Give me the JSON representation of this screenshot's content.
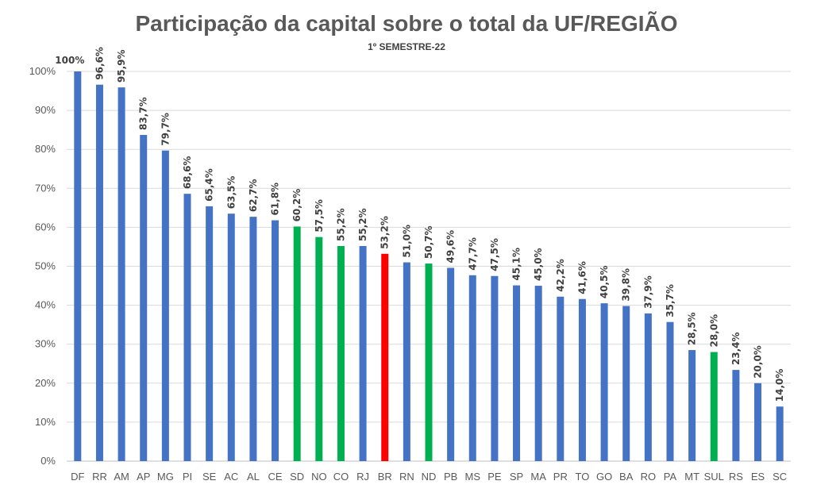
{
  "chart_data": {
    "type": "bar",
    "title": "Participação da capital sobre o total da UF/REGIÃO",
    "subtitle": "1º SEMESTRE-22",
    "xlabel": "",
    "ylabel": "",
    "ylim": [
      0,
      100
    ],
    "yticks": [
      "0%",
      "10%",
      "20%",
      "30%",
      "40%",
      "50%",
      "60%",
      "70%",
      "80%",
      "90%",
      "100%"
    ],
    "grid": true,
    "legend": "none",
    "categories": [
      "DF",
      "RR",
      "AM",
      "AP",
      "MG",
      "PI",
      "SE",
      "AC",
      "AL",
      "CE",
      "SD",
      "NO",
      "CO",
      "RJ",
      "BR",
      "RN",
      "ND",
      "PB",
      "MS",
      "PE",
      "SP",
      "MA",
      "PR",
      "TO",
      "GO",
      "BA",
      "RO",
      "PA",
      "MT",
      "SUL",
      "RS",
      "ES",
      "SC"
    ],
    "values": [
      100,
      96.6,
      95.9,
      83.7,
      79.7,
      68.6,
      65.4,
      63.5,
      62.7,
      61.8,
      60.2,
      57.5,
      55.2,
      55.2,
      53.2,
      51.0,
      50.7,
      49.6,
      47.7,
      47.5,
      45.1,
      45.0,
      42.2,
      41.6,
      40.5,
      39.8,
      37.9,
      35.7,
      28.5,
      28.0,
      23.4,
      20.0,
      14.0
    ],
    "labels": [
      "100%",
      "96,6%",
      "95,9%",
      "83,7%",
      "79,7%",
      "68,6%",
      "65,4%",
      "63,5%",
      "62,7%",
      "61,8%",
      "60,2%",
      "57,5%",
      "55,2%",
      "55,2%",
      "53,2%",
      "51,0%",
      "50,7%",
      "49,6%",
      "47,7%",
      "47,5%",
      "45,1%",
      "45,0%",
      "42,2%",
      "41,6%",
      "40,5%",
      "39,8%",
      "37,9%",
      "35,7%",
      "28,5%",
      "28,0%",
      "23,4%",
      "20,0%",
      "14,0%"
    ],
    "bar_colors": [
      "blue",
      "blue",
      "blue",
      "blue",
      "blue",
      "blue",
      "blue",
      "blue",
      "blue",
      "blue",
      "green",
      "green",
      "green",
      "blue",
      "red",
      "blue",
      "green",
      "blue",
      "blue",
      "blue",
      "blue",
      "blue",
      "blue",
      "blue",
      "blue",
      "blue",
      "blue",
      "blue",
      "blue",
      "green",
      "blue",
      "blue",
      "blue"
    ],
    "colors": {
      "blue": "#4472C4",
      "green": "#00B050",
      "red": "#FF0000",
      "grid": "#D9D9D9",
      "axis": "#BFBFBF"
    }
  }
}
